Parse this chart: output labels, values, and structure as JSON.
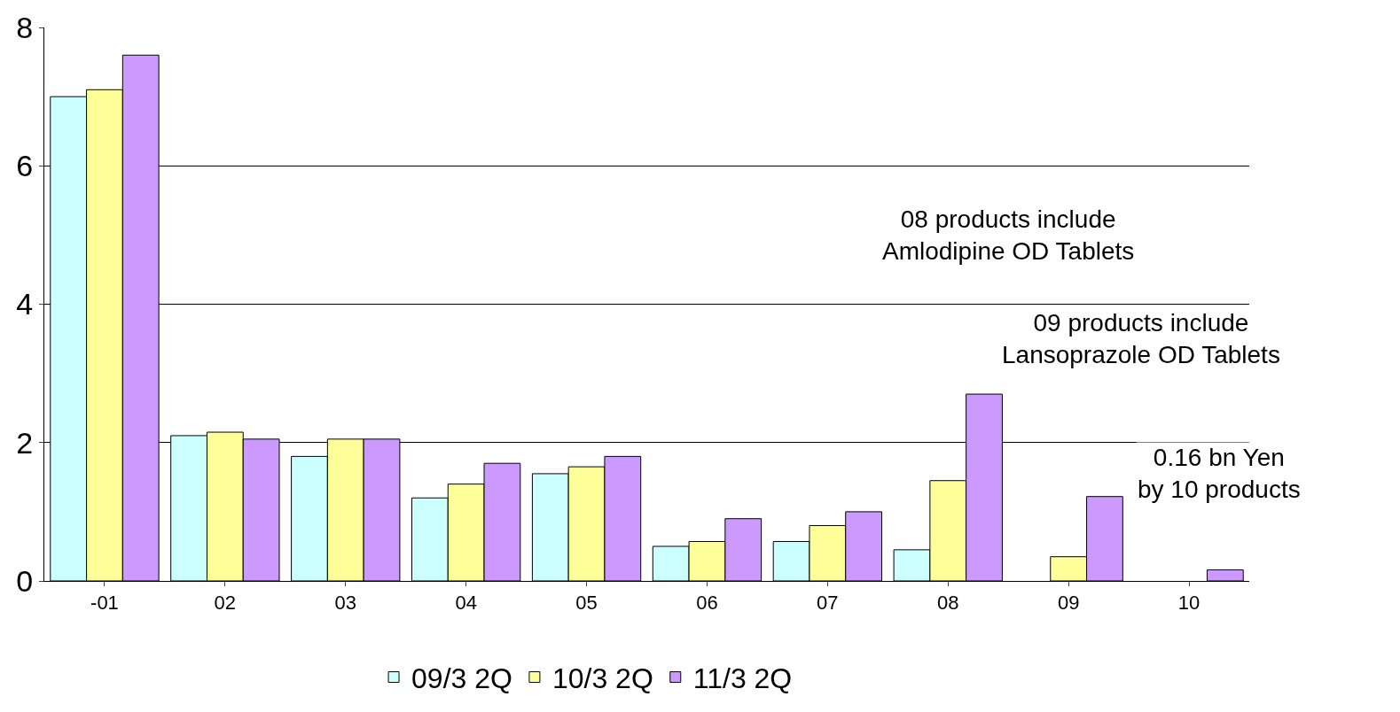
{
  "chart_data": {
    "type": "bar",
    "categories": [
      "-01",
      "02",
      "03",
      "04",
      "05",
      "06",
      "07",
      "08",
      "09",
      "10"
    ],
    "series": [
      {
        "name": "09/3 2Q",
        "color": "#ccffff",
        "values": [
          7.0,
          2.1,
          1.8,
          1.2,
          1.55,
          0.5,
          0.57,
          0.45,
          null,
          null
        ]
      },
      {
        "name": "10/3 2Q",
        "color": "#ffff99",
        "values": [
          7.1,
          2.15,
          2.05,
          1.4,
          1.65,
          0.57,
          0.8,
          1.45,
          0.35,
          null
        ]
      },
      {
        "name": "11/3 2Q",
        "color": "#cc99ff",
        "values": [
          7.6,
          2.05,
          2.05,
          1.7,
          1.8,
          0.9,
          1.0,
          2.7,
          1.22,
          0.16
        ]
      }
    ],
    "ylim": [
      0,
      8
    ],
    "yticks": [
      0,
      2,
      4,
      6,
      8
    ],
    "grid": "y",
    "legend": "bottom",
    "annotations": [
      "08 products include\nAmlodipine OD Tablets",
      "09 products include\nLansoprazole OD Tablets",
      "0.16 bn Yen\nby 10 products"
    ]
  }
}
